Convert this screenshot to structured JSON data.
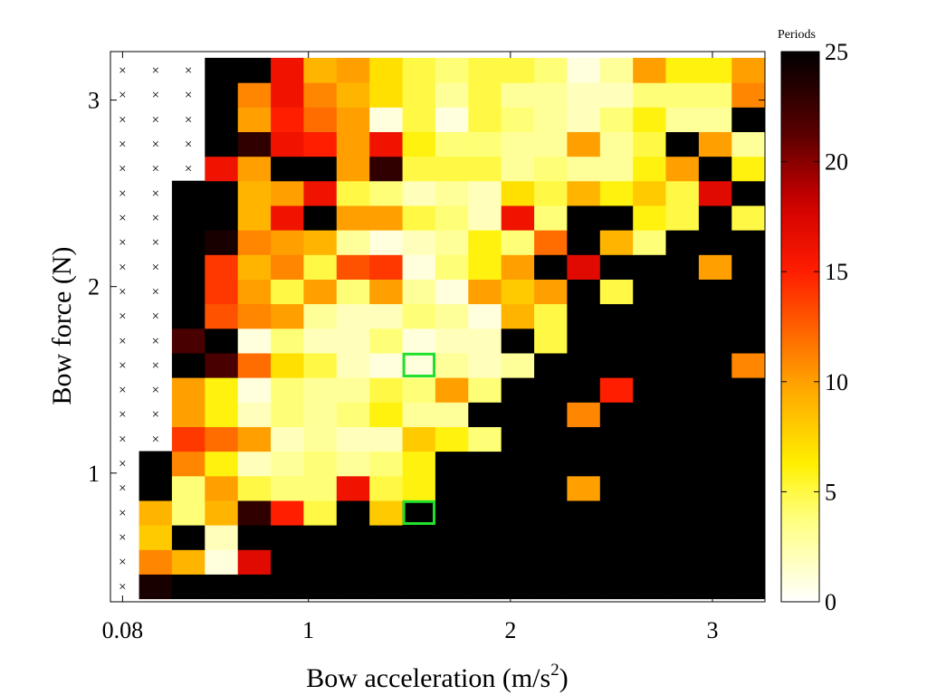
{
  "chart_data": {
    "type": "heatmap",
    "title": "",
    "xlabel_main": "Bow acceleration (m/s",
    "xlabel_sup": "2",
    "xlabel_end": ")",
    "ylabel": "Bow force (N)",
    "x_tick_labels": [
      "0.08",
      "1",
      "2",
      "3"
    ],
    "x_tick_values": [
      0.08,
      1,
      2,
      3
    ],
    "y_tick_labels": [
      "1",
      "2",
      "3"
    ],
    "y_tick_values": [
      1,
      2,
      3
    ],
    "xlim": [
      0.02,
      3.26
    ],
    "ylim": [
      0.31,
      3.26
    ],
    "cols": 20,
    "rows": 22,
    "x_start": 0.08,
    "x_step": 0.163,
    "y_start": 0.393,
    "y_step": 0.1318,
    "colorbar": {
      "title": "Periods",
      "min": 0,
      "max": 25,
      "tick_labels": [
        "0",
        "5",
        "10",
        "15",
        "20",
        "25"
      ],
      "tick_values": [
        0,
        5,
        10,
        15,
        20,
        25
      ]
    },
    "missing_marker": "×",
    "missing_value": -1,
    "values": [
      [
        -1,
        24,
        25,
        25,
        25,
        25,
        25,
        25,
        25,
        25,
        25,
        25,
        25,
        25,
        25,
        25,
        25,
        25,
        25,
        25
      ],
      [
        -1,
        11,
        9,
        1,
        17,
        25,
        25,
        25,
        25,
        25,
        25,
        25,
        25,
        25,
        25,
        25,
        25,
        25,
        25,
        25
      ],
      [
        -1,
        8,
        25,
        2,
        25,
        25,
        25,
        25,
        25,
        25,
        25,
        25,
        25,
        25,
        25,
        25,
        25,
        25,
        25,
        25
      ],
      [
        -1,
        9,
        4,
        9,
        23,
        15,
        5,
        25,
        8,
        25,
        25,
        25,
        25,
        25,
        25,
        25,
        25,
        25,
        25,
        25
      ],
      [
        -1,
        25,
        4,
        10,
        5,
        4,
        4,
        16,
        5,
        6,
        25,
        25,
        25,
        25,
        10,
        25,
        25,
        25,
        25,
        25
      ],
      [
        -1,
        25,
        11,
        6,
        2,
        3,
        4,
        3,
        4,
        6,
        25,
        25,
        25,
        25,
        25,
        25,
        25,
        25,
        25,
        25
      ],
      [
        -1,
        -1,
        14,
        12,
        10,
        2,
        3,
        2,
        2,
        8,
        6,
        4,
        25,
        25,
        25,
        25,
        25,
        25,
        25,
        25
      ],
      [
        -1,
        -1,
        10,
        6,
        2,
        4,
        3,
        4,
        6,
        3,
        3,
        25,
        25,
        25,
        11,
        25,
        25,
        25,
        25,
        25
      ],
      [
        -1,
        -1,
        10,
        6,
        1,
        4,
        3,
        3,
        5,
        4,
        10,
        4,
        25,
        25,
        25,
        15,
        25,
        25,
        25,
        25
      ],
      [
        -1,
        -1,
        25,
        22,
        12,
        7,
        5,
        2,
        1,
        1,
        3,
        2,
        3,
        25,
        25,
        25,
        25,
        25,
        25,
        11
      ],
      [
        -1,
        -1,
        22,
        25,
        1,
        4,
        2,
        2,
        4,
        1,
        2,
        2,
        25,
        5,
        25,
        25,
        25,
        25,
        25,
        25
      ],
      [
        -1,
        -1,
        25,
        13,
        11,
        10,
        3,
        2,
        2,
        4,
        3,
        1,
        9,
        5,
        25,
        25,
        25,
        25,
        25,
        25
      ],
      [
        -1,
        -1,
        25,
        14,
        10,
        5,
        10,
        4,
        10,
        3,
        1,
        10,
        8,
        10,
        25,
        5,
        25,
        25,
        25,
        25
      ],
      [
        -1,
        -1,
        25,
        14,
        9,
        11,
        5,
        13,
        14,
        1,
        4,
        6,
        10,
        25,
        17,
        25,
        25,
        25,
        10,
        25
      ],
      [
        -1,
        -1,
        25,
        24,
        11,
        10,
        9,
        3,
        1,
        2,
        3,
        6,
        4,
        12,
        25,
        9,
        4,
        25,
        25,
        25
      ],
      [
        -1,
        -1,
        25,
        25,
        9,
        16,
        25,
        10,
        10,
        5,
        4,
        2,
        16,
        4,
        25,
        25,
        6,
        5,
        25,
        5
      ],
      [
        -1,
        -1,
        25,
        25,
        9,
        10,
        16,
        5,
        4,
        2,
        3,
        2,
        7,
        5,
        9,
        6,
        8,
        5,
        17,
        25
      ],
      [
        -1,
        -1,
        -1,
        16,
        10,
        25,
        25,
        10,
        23,
        5,
        5,
        5,
        3,
        4,
        3,
        3,
        6,
        10,
        25,
        6
      ],
      [
        -1,
        -1,
        -1,
        25,
        23,
        16,
        15,
        10,
        16,
        6,
        4,
        4,
        3,
        3,
        10,
        3,
        5,
        25,
        10,
        3
      ],
      [
        -1,
        -1,
        -1,
        25,
        10,
        15,
        12,
        10,
        1,
        5,
        1,
        5,
        4,
        3,
        2,
        4,
        6,
        3,
        3,
        25
      ],
      [
        -1,
        -1,
        -1,
        25,
        11,
        16,
        11,
        9,
        7,
        5,
        3,
        5,
        3,
        3,
        2,
        2,
        4,
        4,
        4,
        11
      ],
      [
        -1,
        -1,
        -1,
        25,
        25,
        16,
        9,
        10,
        7,
        5,
        4,
        5,
        5,
        4,
        1,
        3,
        10,
        6,
        6,
        10
      ]
    ],
    "highlighted_cells": [
      {
        "col": 9,
        "row": 3,
        "color": "#22e12a"
      },
      {
        "col": 9,
        "row": 9,
        "color": "#22e12a"
      }
    ]
  }
}
